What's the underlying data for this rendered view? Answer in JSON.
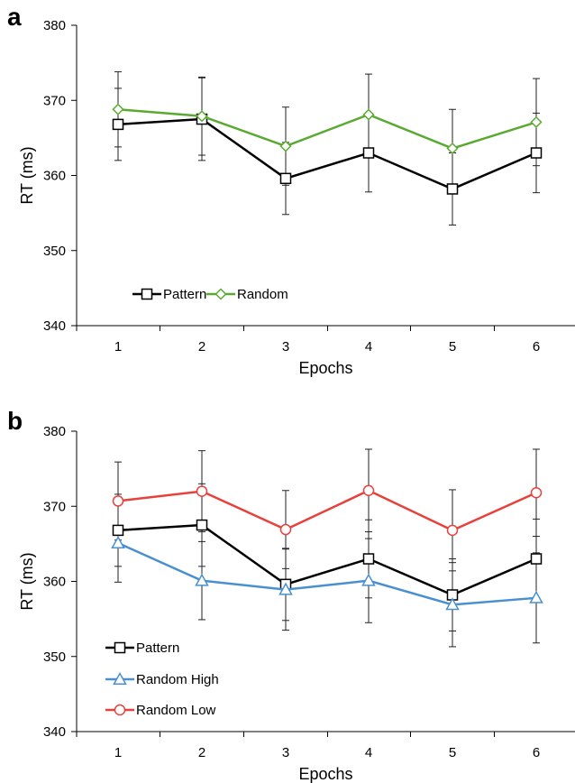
{
  "chart_data": [
    {
      "type": "line",
      "panel_label": "a",
      "title": "",
      "xlabel": "Epochs",
      "ylabel": "RT (ms)",
      "categories": [
        "1",
        "2",
        "3",
        "4",
        "5",
        "6"
      ],
      "ylim": [
        340,
        380
      ],
      "yticks": [
        "340",
        "350",
        "360",
        "370",
        "380"
      ],
      "grid": false,
      "legend_position": "bottom-left",
      "series": [
        {
          "name": "Pattern",
          "color": "#000000",
          "marker": "square",
          "values": [
            366.8,
            367.5,
            359.6,
            363.0,
            358.2,
            363.0
          ],
          "error": [
            4.8,
            5.5,
            4.8,
            5.2,
            4.8,
            5.3
          ]
        },
        {
          "name": "Random",
          "color": "#5aaa32",
          "marker": "diamond",
          "values": [
            368.8,
            367.9,
            363.9,
            368.1,
            363.6,
            367.1
          ],
          "error": [
            5.0,
            5.2,
            5.2,
            5.4,
            5.2,
            5.8
          ]
        }
      ]
    },
    {
      "type": "line",
      "panel_label": "b",
      "title": "",
      "xlabel": "Epochs",
      "ylabel": "RT (ms)",
      "categories": [
        "1",
        "2",
        "3",
        "4",
        "5",
        "6"
      ],
      "ylim": [
        340,
        380
      ],
      "yticks": [
        "340",
        "350",
        "360",
        "370",
        "380"
      ],
      "grid": false,
      "legend_position": "bottom-left",
      "series": [
        {
          "name": "Pattern",
          "color": "#000000",
          "marker": "square",
          "values": [
            366.8,
            367.5,
            359.6,
            363.0,
            358.2,
            363.0
          ],
          "error": [
            4.8,
            5.5,
            4.8,
            5.2,
            4.8,
            5.3
          ]
        },
        {
          "name": "Random High",
          "color": "#4a90cf",
          "marker": "triangle",
          "values": [
            365.1,
            360.1,
            358.9,
            360.1,
            356.9,
            357.8
          ],
          "error": [
            5.2,
            5.2,
            5.4,
            5.6,
            5.6,
            6.0
          ]
        },
        {
          "name": "Random Low",
          "color": "#e8413c",
          "marker": "circle",
          "values": [
            370.7,
            372.0,
            366.9,
            372.1,
            366.8,
            371.8
          ],
          "error": [
            5.2,
            5.4,
            5.2,
            5.5,
            5.4,
            5.8
          ]
        }
      ]
    }
  ]
}
